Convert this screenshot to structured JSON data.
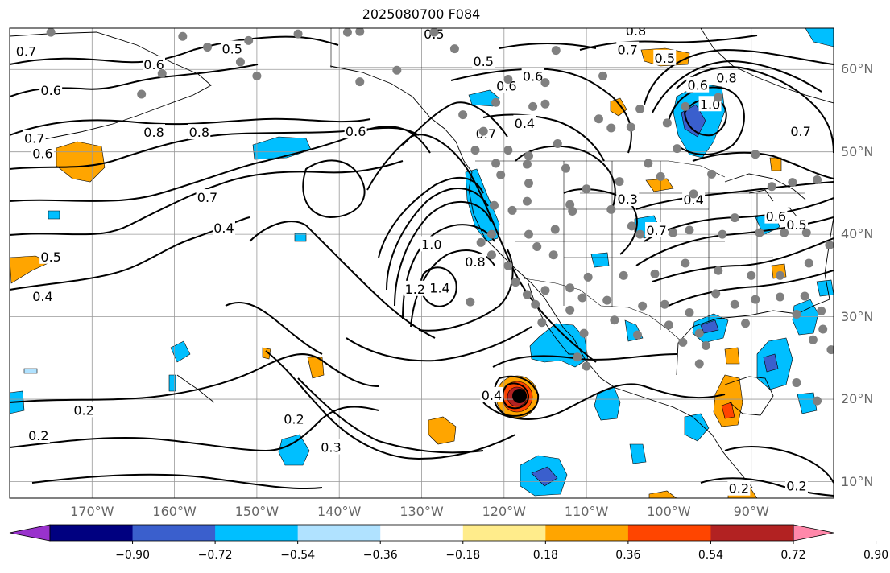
{
  "title": "2025080700 F084",
  "lat_labels": [
    {
      "text": "60°N",
      "lat": 60
    },
    {
      "text": "50°N",
      "lat": 50
    },
    {
      "text": "40°N",
      "lat": 40
    },
    {
      "text": "30°N",
      "lat": 30
    },
    {
      "text": "20°N",
      "lat": 20
    },
    {
      "text": "10°N",
      "lat": 10
    }
  ],
  "lon_labels": [
    {
      "text": "170°W",
      "lon": -170
    },
    {
      "text": "160°W",
      "lon": -160
    },
    {
      "text": "150°W",
      "lon": -150
    },
    {
      "text": "140°W",
      "lon": -140
    },
    {
      "text": "130°W",
      "lon": -130
    },
    {
      "text": "120°W",
      "lon": -120
    },
    {
      "text": "110°W",
      "lon": -110
    },
    {
      "text": "100°W",
      "lon": -100
    },
    {
      "text": "90°W",
      "lon": -90
    }
  ],
  "colorbar": {
    "ticks": [
      "−0.90",
      "−0.72",
      "−0.54",
      "−0.36",
      "−0.18",
      "0.18",
      "0.36",
      "0.54",
      "0.72",
      "0.90"
    ],
    "colors": [
      "#9932cc",
      "#000080",
      "#3a5fcd",
      "#00bfff",
      "#b0e2ff",
      "#ffffff",
      "#ffec8b",
      "#ffa500",
      "#ff4500",
      "#b22222",
      "#ff88aa"
    ]
  },
  "map_extent": {
    "lon_min": -180,
    "lon_max": -80,
    "lat_min": 8,
    "lat_max": 65
  },
  "contour_labels": [
    {
      "text": "0.7",
      "lon": -178,
      "lat": 62.2
    },
    {
      "text": "0.6",
      "lon": -162.5,
      "lat": 60.6
    },
    {
      "text": "0.5",
      "lon": -153,
      "lat": 62.5
    },
    {
      "text": "0.6",
      "lon": -175,
      "lat": 57.5
    },
    {
      "text": "0.7",
      "lon": -177,
      "lat": 51.7
    },
    {
      "text": "0.6",
      "lon": -176,
      "lat": 49.8
    },
    {
      "text": "0.8",
      "lon": -162.5,
      "lat": 52.4
    },
    {
      "text": "0.8",
      "lon": -157,
      "lat": 52.4
    },
    {
      "text": "0.6",
      "lon": -138,
      "lat": 52.5
    },
    {
      "text": "0.7",
      "lon": -156,
      "lat": 44.5
    },
    {
      "text": "0.4",
      "lon": -154,
      "lat": 40.8
    },
    {
      "text": "0.5",
      "lon": -175,
      "lat": 37.3
    },
    {
      "text": "0.4",
      "lon": -176,
      "lat": 32.5
    },
    {
      "text": "0.2",
      "lon": -171,
      "lat": 18.7
    },
    {
      "text": "0.2",
      "lon": -176.5,
      "lat": 15.6
    },
    {
      "text": "0.2",
      "lon": -145.5,
      "lat": 17.6
    },
    {
      "text": "0.3",
      "lon": -141,
      "lat": 14.2
    },
    {
      "text": "0.4",
      "lon": -121.5,
      "lat": 20.5
    },
    {
      "text": "1.0",
      "lon": -128.8,
      "lat": 38.8
    },
    {
      "text": "1.2",
      "lon": -130.8,
      "lat": 33.4
    },
    {
      "text": "1.4",
      "lon": -127.8,
      "lat": 33.5
    },
    {
      "text": "0.8",
      "lon": -123.5,
      "lat": 36.7
    },
    {
      "text": "0.5",
      "lon": -128.5,
      "lat": 64.3
    },
    {
      "text": "0.5",
      "lon": -122.5,
      "lat": 61
    },
    {
      "text": "0.6",
      "lon": -116.5,
      "lat": 59.2
    },
    {
      "text": "0.6",
      "lon": -119.7,
      "lat": 58
    },
    {
      "text": "0.7",
      "lon": -122.2,
      "lat": 52.2
    },
    {
      "text": "0.4",
      "lon": -117.5,
      "lat": 53.5
    },
    {
      "text": "0.8",
      "lon": -104,
      "lat": 64.7
    },
    {
      "text": "0.7",
      "lon": -105,
      "lat": 62.4
    },
    {
      "text": "0.5",
      "lon": -100.5,
      "lat": 61.4
    },
    {
      "text": "0.6",
      "lon": -96.5,
      "lat": 58.1
    },
    {
      "text": "0.8",
      "lon": -93,
      "lat": 59
    },
    {
      "text": "1.0",
      "lon": -95,
      "lat": 55.8
    },
    {
      "text": "0.7",
      "lon": -84,
      "lat": 52.5
    },
    {
      "text": "0.3",
      "lon": -105,
      "lat": 44.3
    },
    {
      "text": "0.4",
      "lon": -97,
      "lat": 44.2
    },
    {
      "text": "0.6",
      "lon": -87,
      "lat": 42.2
    },
    {
      "text": "0.5",
      "lon": -84.5,
      "lat": 41.2
    },
    {
      "text": "0.7",
      "lon": -101.5,
      "lat": 40.5
    },
    {
      "text": "0.2",
      "lon": -91.5,
      "lat": 9.2
    },
    {
      "text": "0.2",
      "lon": -84.5,
      "lat": 9.5
    }
  ],
  "stations": [
    [
      -175,
      64.5
    ],
    [
      -159,
      64
    ],
    [
      -151,
      63.5
    ],
    [
      -145,
      64.3
    ],
    [
      -139,
      64.5
    ],
    [
      -156,
      62.7
    ],
    [
      -152,
      60.9
    ],
    [
      -161.5,
      59.5
    ],
    [
      -164,
      57
    ],
    [
      -150,
      59.2
    ],
    [
      -137.5,
      58.5
    ],
    [
      -133,
      59.9
    ],
    [
      -128.5,
      64.5
    ],
    [
      -137.5,
      64.6
    ],
    [
      -126,
      62.5
    ],
    [
      -108,
      59.2
    ],
    [
      -113.7,
      62.3
    ],
    [
      -119.5,
      58.8
    ],
    [
      -121,
      56
    ],
    [
      -115,
      58.4
    ],
    [
      -116.5,
      55.5
    ],
    [
      -108.5,
      54
    ],
    [
      -107,
      52.9
    ],
    [
      -103.5,
      55.2
    ],
    [
      -104.6,
      53
    ],
    [
      -100.2,
      53.5
    ],
    [
      -98,
      55.5
    ],
    [
      -94,
      56.6
    ],
    [
      -99,
      50.4
    ],
    [
      -102.5,
      48.6
    ],
    [
      -119.5,
      50.2
    ],
    [
      -117,
      49.5
    ],
    [
      -113.5,
      51
    ],
    [
      -112.5,
      48
    ],
    [
      -117.2,
      48.5
    ],
    [
      -122.5,
      52.5
    ],
    [
      -121,
      48.6
    ],
    [
      -123.5,
      50.2
    ],
    [
      -125,
      54.5
    ],
    [
      -115,
      55.8
    ],
    [
      -89.5,
      49.7
    ],
    [
      -94.8,
      47.3
    ],
    [
      -85,
      46.3
    ],
    [
      -82,
      46.6
    ],
    [
      -87.5,
      45.8
    ],
    [
      -92,
      42
    ],
    [
      -97,
      44.9
    ],
    [
      -101,
      47
    ],
    [
      -106,
      46.4
    ],
    [
      -110,
      45.5
    ],
    [
      -117,
      46.2
    ],
    [
      -120.4,
      47.2
    ],
    [
      -117.2,
      44
    ],
    [
      -112,
      43.6
    ],
    [
      -107,
      43
    ],
    [
      -104.5,
      41
    ],
    [
      -103.5,
      40
    ],
    [
      -99.5,
      40.2
    ],
    [
      -97.5,
      40.5
    ],
    [
      -93.5,
      40
    ],
    [
      -89,
      40.2
    ],
    [
      -86,
      40.2
    ],
    [
      -83.3,
      40.2
    ],
    [
      -80.5,
      38.7
    ],
    [
      -83,
      36.5
    ],
    [
      -86.5,
      35
    ],
    [
      -90,
      35
    ],
    [
      -94,
      35.6
    ],
    [
      -98,
      36.5
    ],
    [
      -101.7,
      35.2
    ],
    [
      -105.5,
      35
    ],
    [
      -109.8,
      34.8
    ],
    [
      -112,
      33.5
    ],
    [
      -115,
      33.2
    ],
    [
      -119.5,
      36.2
    ],
    [
      -121.5,
      37.5
    ],
    [
      -122.8,
      39
    ],
    [
      -121.2,
      43.5
    ],
    [
      -119,
      42.9
    ],
    [
      -121.5,
      40
    ],
    [
      -117,
      40
    ],
    [
      -113.8,
      40.6
    ],
    [
      -111.7,
      42.8
    ],
    [
      -116,
      38.5
    ],
    [
      -118.6,
      34.2
    ],
    [
      -114,
      37.5
    ],
    [
      -110.5,
      32.3
    ],
    [
      -107.5,
      32
    ],
    [
      -103.2,
      31.3
    ],
    [
      -100.5,
      31.5
    ],
    [
      -97.5,
      30.5
    ],
    [
      -94.3,
      32.8
    ],
    [
      -92,
      31.5
    ],
    [
      -89.5,
      32.1
    ],
    [
      -86.5,
      32.4
    ],
    [
      -83.5,
      32.5
    ],
    [
      -81.5,
      30.7
    ],
    [
      -84.5,
      30.3
    ],
    [
      -81.3,
      28.5
    ],
    [
      -80.3,
      26
    ],
    [
      -82.5,
      27.2
    ],
    [
      -90.7,
      29.2
    ],
    [
      -96.3,
      28
    ],
    [
      -98.3,
      26.9
    ],
    [
      -100,
      29
    ],
    [
      -103.8,
      27.8
    ],
    [
      -106.6,
      29.6
    ],
    [
      -112,
      30.8
    ],
    [
      -116.2,
      31.5
    ],
    [
      -115.4,
      29.3
    ],
    [
      -110.3,
      28
    ],
    [
      -111.1,
      25.1
    ],
    [
      -110,
      24
    ],
    [
      -117.2,
      32.7
    ],
    [
      -124.1,
      31.8
    ],
    [
      -95.5,
      26.5
    ],
    [
      -96.3,
      24.3
    ],
    [
      -84.5,
      22
    ],
    [
      -82,
      19.8
    ]
  ]
}
